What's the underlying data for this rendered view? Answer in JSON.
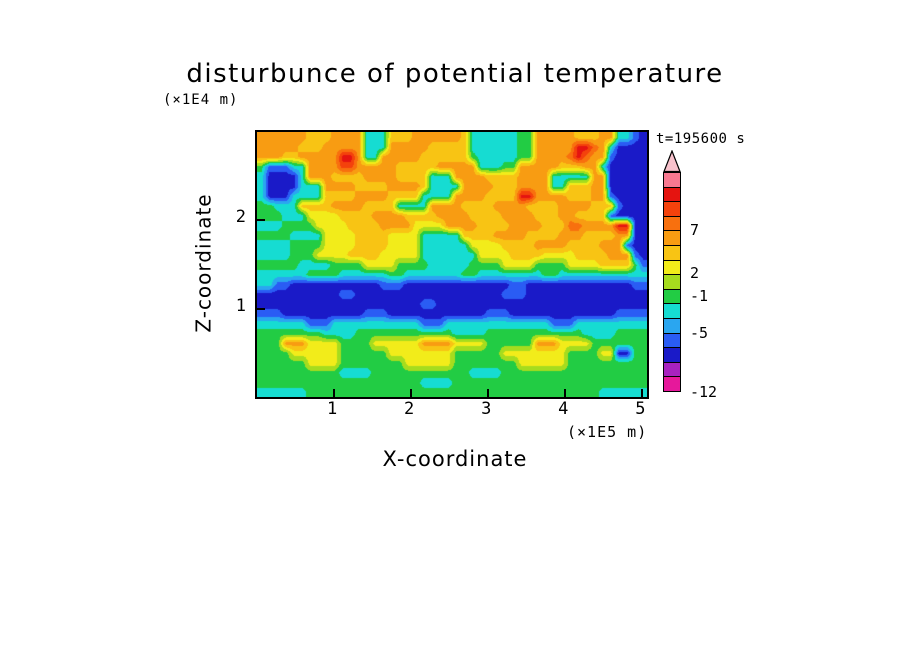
{
  "chart_data": {
    "type": "heatmap",
    "title": "disturbunce of potential temperature",
    "xlabel": "X-coordinate",
    "x_unit": "(×1E5 m)",
    "ylabel": "Z-coordinate",
    "y_unit": "(×1E4 m)",
    "time_annotation": "t=195600 s",
    "x_range": [
      0,
      5.06
    ],
    "y_range": [
      0,
      3
    ],
    "x_ticks": [
      1,
      2,
      3,
      4,
      5
    ],
    "y_ticks": [
      1,
      2
    ],
    "grid_on": false,
    "legend_position": "right-colorbar",
    "palette": [
      "#e6189b",
      "#a822c0",
      "#1a1ac8",
      "#2a5cf4",
      "#2aa6f0",
      "#16dcd2",
      "#22cc44",
      "#a6dc1e",
      "#f2ec1a",
      "#f8c414",
      "#f89c12",
      "#f8700e",
      "#f4420c",
      "#e51410",
      "#f87890",
      "#f8c2cc"
    ],
    "colorbar": {
      "labels": [
        {
          "text": "7",
          "pos": 0.736
        },
        {
          "text": "2",
          "pos": 0.541
        },
        {
          "text": "-1",
          "pos": 0.436
        },
        {
          "text": "-5",
          "pos": 0.268
        },
        {
          "text": "-12",
          "pos": 0.0
        }
      ]
    },
    "levels_grid": {
      "comment": "level indices 0-15 into palette, hex chars, row 0 = top of plot (z=3), row 26 = bottom (z=0)",
      "cols": 48,
      "rows": 27,
      "rows_data": [
        "aaaaaa999aaaa555999aaaaaa955555566aaaaa999aa5532",
        "aaaaa999aaaaa555aaaaa9999955555566aaaaaddba52222",
        "aaa99aaaaadda55aaaaa99999965555566aaaabdbaa32222",
        "633355aaaaccaaaaa99999aaaaa55566aaaaa999aa522222",
        "522225aaa9999aaaa9999555aaaa9999aaaa55555aa22222",
        "52222555aaaa9999aaaa95555aaaa999aaaa55999aa22222",
        "522255559999aaaa99995555aaaa9999ddaaaa999aa32222",
        "665559999aaaa99995555aaaa9999aaaa9999aaaa9993222",
        "66655588889999aaaa9999aaaa9999aaaa999aa999932222",
        "555666688889999aaaa8888aaaa9999aaaa999bbaaaadd22",
        "66665555888899998888555559999aaaa9999aaa9999aa22",
        "5555666688889999888855555588889999aaaa9999aaa322",
        "5555666888899998888855555558888999988889999aaa32",
        "666665555666688886666555556666888866668888999963",
        "555555666655555566555555566555555556655555555555",
        "553322222222222333222222222222233222222222222233",
        "222222222233222222222222222222333222222222222222",
        "222222222222222222223322222222222222222222222222",
        "333222222222233322222222222233322222222222223333",
        "555555333555555555553335555555555555333555555555",
        "666666665555666666666666555566666666666655556666",
        "666aaa88886666888888aaaa8888666666aaa88886666666",
        "666688888866666688888888666666888888886666882266",
        "666666888866666666888888666666668888886666666666",
        "666666666655556666666666665555666666666666666666",
        "666666666666666666665555666666666666666666666666",
        "555555666666666666666666666666666666666666555555"
      ]
    }
  }
}
